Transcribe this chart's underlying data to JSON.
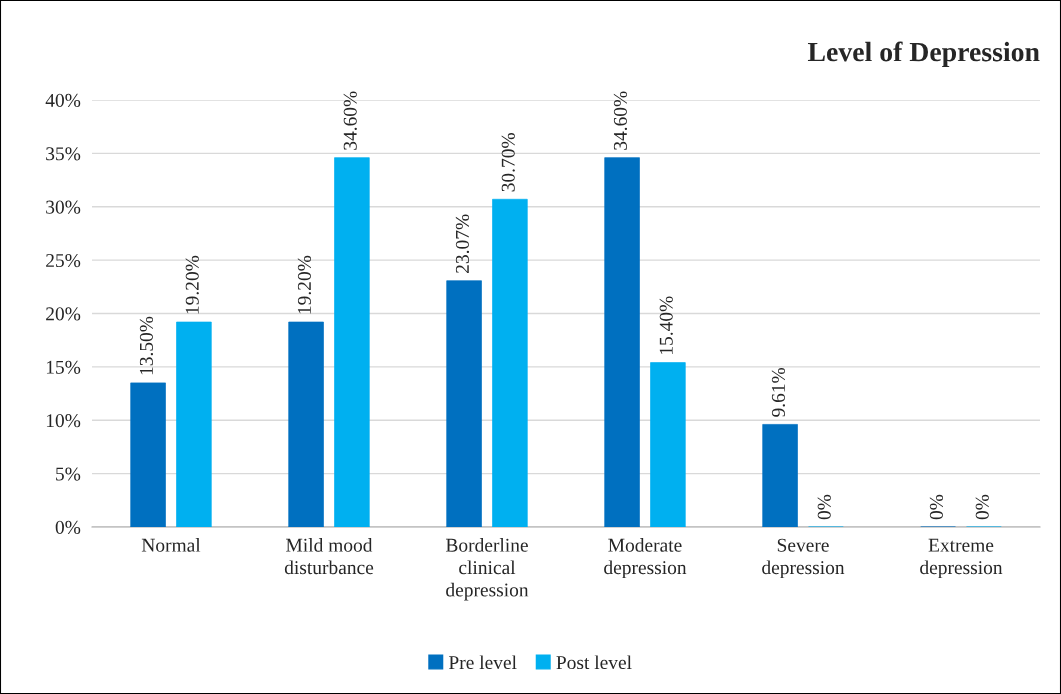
{
  "chart_data": {
    "type": "bar",
    "title": "Level of Depression",
    "categories": [
      "Normal",
      "Mild mood\ndisturbance",
      "Borderline\nclinical\ndepression",
      "Moderate\ndepression",
      "Severe\ndepression",
      "Extreme\ndepression"
    ],
    "series": [
      {
        "name": "Pre level",
        "color": "#0070c0",
        "values": [
          13.5,
          19.2,
          23.07,
          34.6,
          9.61,
          0
        ],
        "value_labels": [
          "13.50%",
          "19.20%",
          "23.07%",
          "34.60%",
          "9.61%",
          "0%"
        ]
      },
      {
        "name": "Post level",
        "color": "#00b0f0",
        "values": [
          19.2,
          34.6,
          30.7,
          15.4,
          0,
          0
        ],
        "value_labels": [
          "19.20%",
          "34.60%",
          "30.70%",
          "15.40%",
          "0%",
          "0%"
        ]
      }
    ],
    "ylim": [
      0,
      40
    ],
    "yticks": [
      {
        "value": 0,
        "label": "0%"
      },
      {
        "value": 5,
        "label": "5%"
      },
      {
        "value": 10,
        "label": "10%"
      },
      {
        "value": 15,
        "label": "15%"
      },
      {
        "value": 20,
        "label": "20%"
      },
      {
        "value": 25,
        "label": "25%"
      },
      {
        "value": 30,
        "label": "30%"
      },
      {
        "value": 35,
        "label": "35%"
      },
      {
        "value": 40,
        "label": "40%"
      }
    ],
    "grid": "y",
    "legend": "bottom"
  }
}
